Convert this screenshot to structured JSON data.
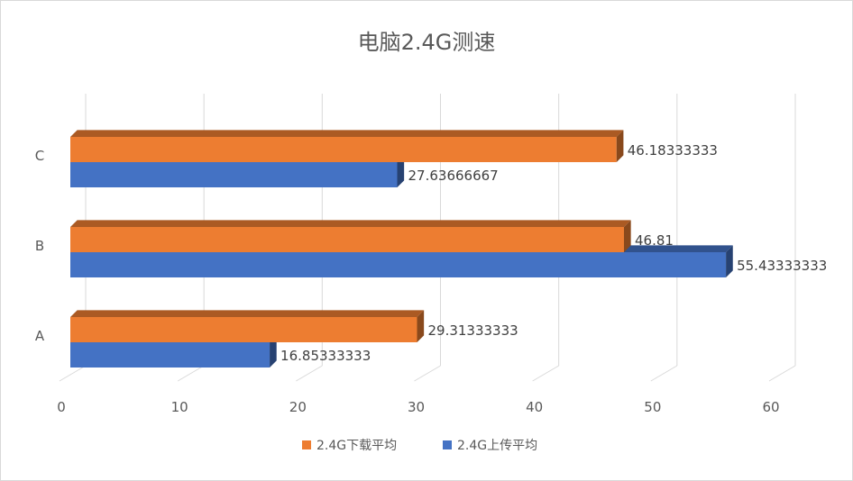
{
  "chart_data": {
    "type": "bar",
    "orientation": "horizontal",
    "title": "电脑2.4G测速",
    "categories": [
      "A",
      "B",
      "C"
    ],
    "series": [
      {
        "name": "2.4G下载平均",
        "values": [
          29.31333333,
          46.81,
          46.18333333
        ],
        "labels": [
          "29.31333333",
          "46.81",
          "46.18333333"
        ],
        "color": "#ED7D31"
      },
      {
        "name": "2.4G上传平均",
        "values": [
          16.85333333,
          55.43333333,
          27.63666667
        ],
        "labels": [
          "16.85333333",
          "55.43333333",
          "27.63666667"
        ],
        "color": "#4472C4"
      }
    ],
    "x_ticks": [
      "0",
      "10",
      "20",
      "30",
      "40",
      "50",
      "60"
    ],
    "xlim": [
      0,
      60
    ],
    "grid": true,
    "legend_position": "bottom",
    "style": "3d-bar"
  }
}
